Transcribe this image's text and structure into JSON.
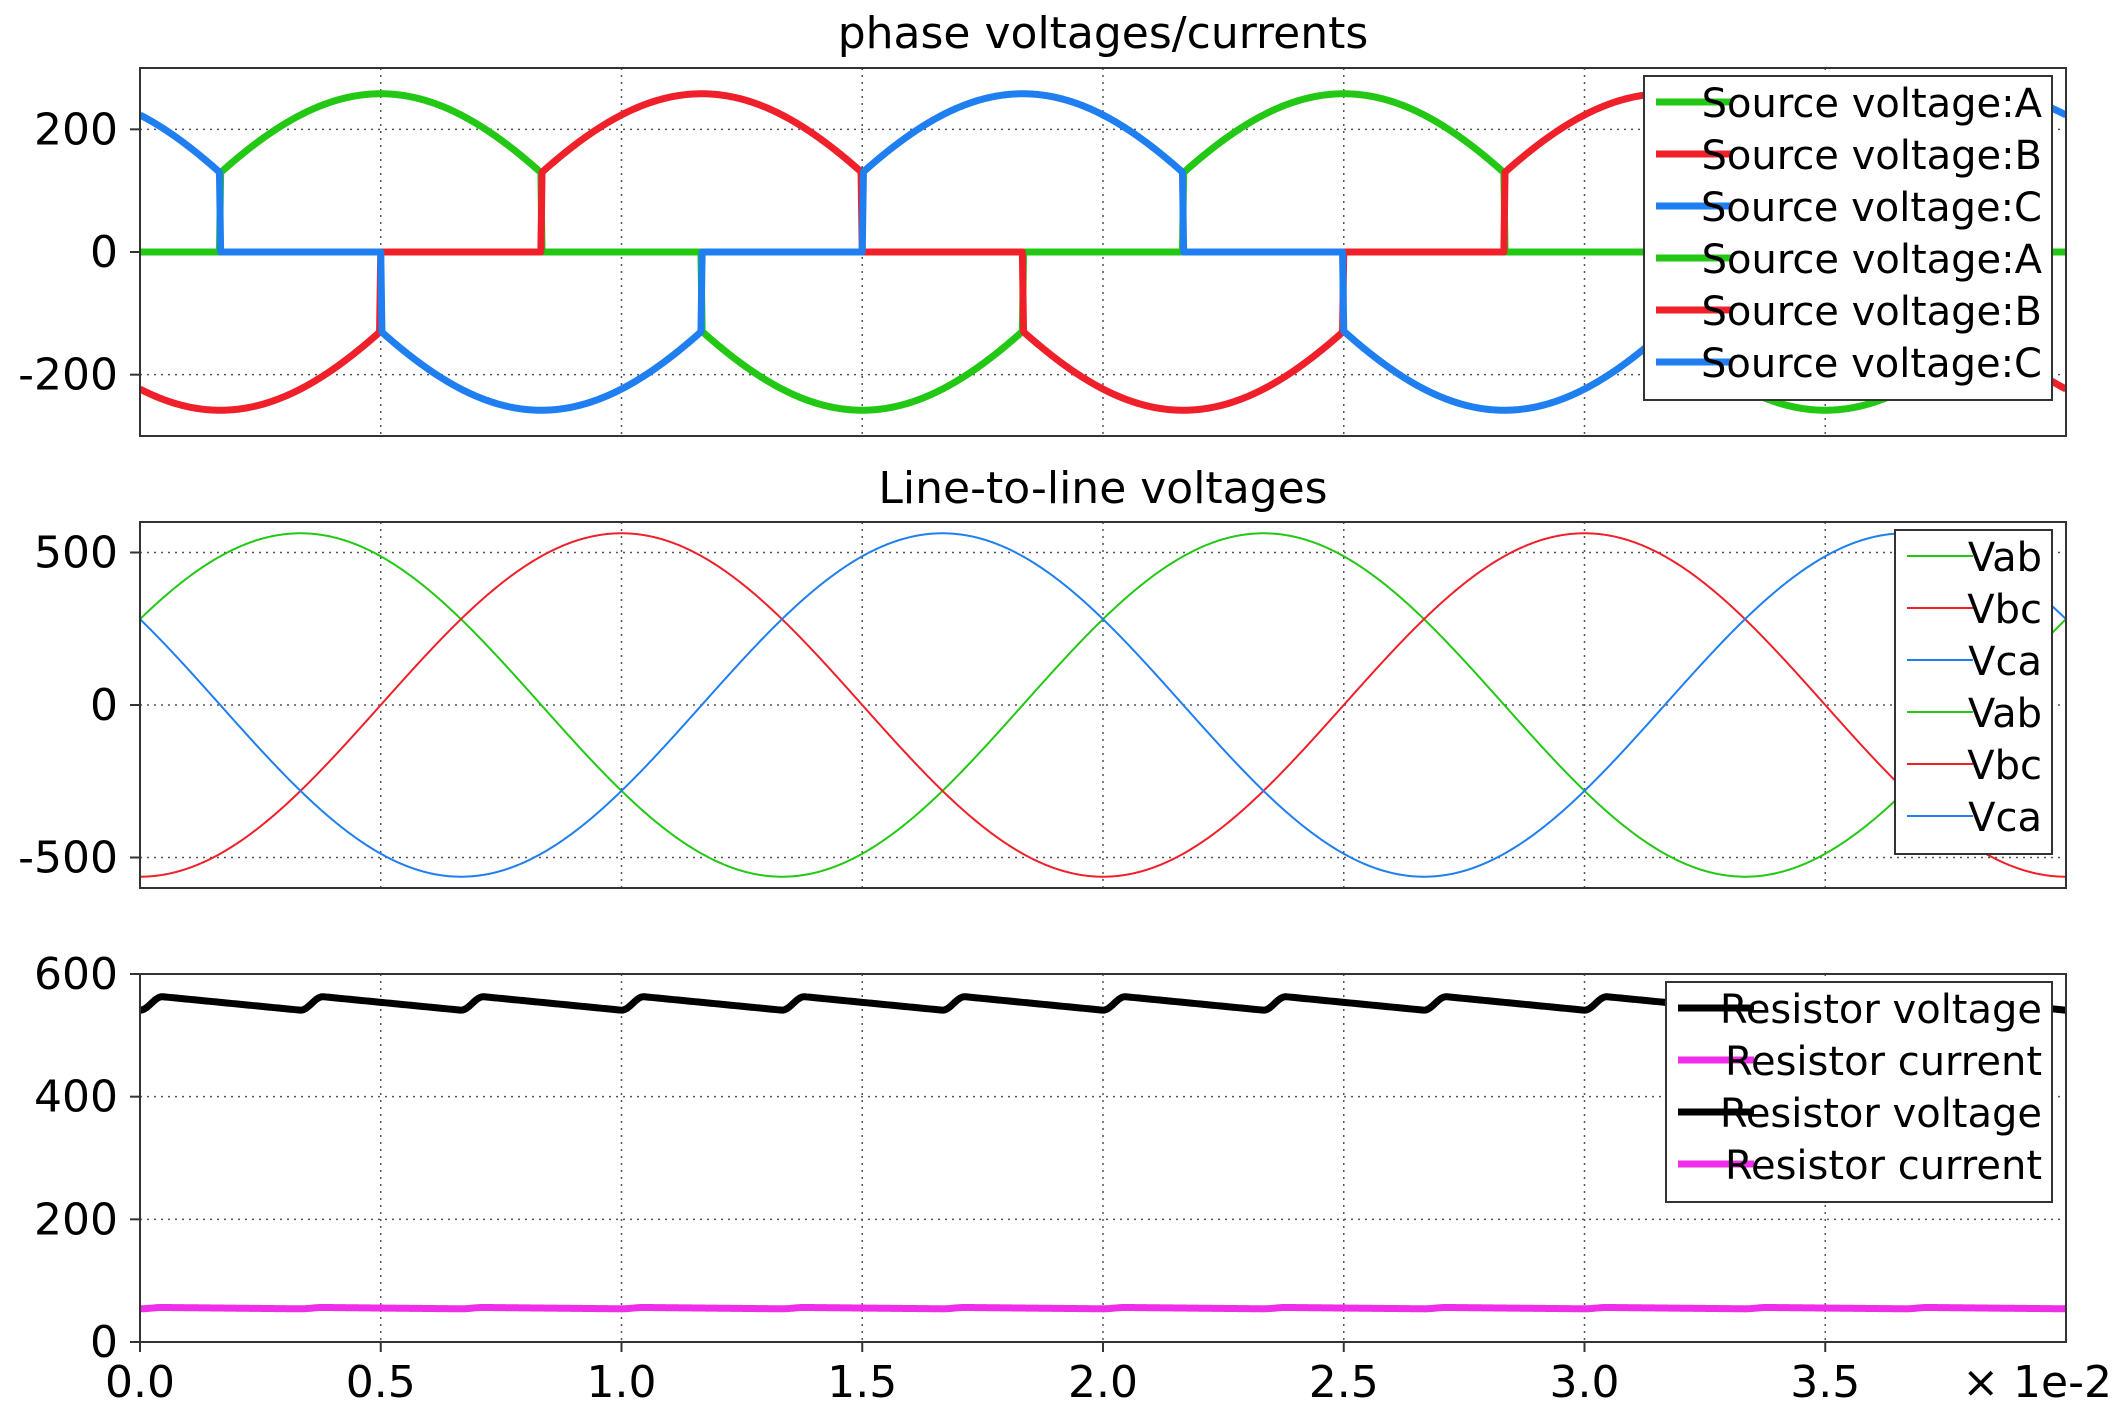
{
  "chart_data": [
    {
      "type": "line",
      "title": "phase voltages/currents",
      "xlim": [
        0,
        0.04
      ],
      "ylim": [
        -300,
        300
      ],
      "yticks": [
        -200,
        0,
        200
      ],
      "ytick_labels": [
        "-200",
        "0",
        "200"
      ],
      "grid": true,
      "legend_position": "top-right",
      "legend": [
        "Source voltage:A",
        "Source voltage:B",
        "Source voltage:C",
        "Source voltage:A",
        "Source voltage:B",
        "Source voltage:C"
      ],
      "series": [
        {
          "name": "Source voltage:A",
          "color": "#22c814",
          "amplitude": 258,
          "frequency_hz": 50,
          "phase_deg": 0,
          "conduction": "rectifier-diode-pulses"
        },
        {
          "name": "Source voltage:B",
          "color": "#f0202a",
          "amplitude": 258,
          "frequency_hz": 50,
          "phase_deg": -120,
          "conduction": "rectifier-diode-pulses"
        },
        {
          "name": "Source voltage:C",
          "color": "#1f7ff0",
          "amplitude": 258,
          "frequency_hz": 50,
          "phase_deg": 120,
          "conduction": "rectifier-diode-pulses"
        }
      ]
    },
    {
      "type": "line",
      "title": "Line-to-line voltages",
      "xlim": [
        0,
        0.04
      ],
      "ylim": [
        -600,
        600
      ],
      "yticks": [
        -500,
        0,
        500
      ],
      "ytick_labels": [
        "-500",
        "0",
        "500"
      ],
      "grid": true,
      "legend_position": "top-right",
      "legend": [
        "Vab",
        "Vbc",
        "Vca",
        "Vab",
        "Vbc",
        "Vca"
      ],
      "series": [
        {
          "name": "Vab",
          "color": "#22c814",
          "amplitude": 563,
          "frequency_hz": 50,
          "phase_deg": 30
        },
        {
          "name": "Vbc",
          "color": "#f0202a",
          "amplitude": 563,
          "frequency_hz": 50,
          "phase_deg": -90
        },
        {
          "name": "Vca",
          "color": "#1f7ff0",
          "amplitude": 563,
          "frequency_hz": 50,
          "phase_deg": 150
        }
      ]
    },
    {
      "type": "line",
      "title": "",
      "xlim": [
        0,
        0.04
      ],
      "ylim": [
        0,
        600
      ],
      "yticks": [
        0,
        200,
        400,
        600
      ],
      "ytick_labels": [
        "0",
        "200",
        "400",
        "600"
      ],
      "xticks": [
        0,
        0.005,
        0.01,
        0.015,
        0.02,
        0.025,
        0.03,
        0.035
      ],
      "xtick_labels": [
        "0.0",
        "0.5",
        "1.0",
        "1.5",
        "2.0",
        "2.5",
        "3.0",
        "3.5"
      ],
      "x_multiplier_label": "× 1e-2",
      "grid": true,
      "legend_position": "top-right",
      "legend": [
        "Resistor voltage",
        "Resistor current",
        "Resistor voltage",
        "Resistor current"
      ],
      "series": [
        {
          "name": "Resistor voltage",
          "color": "#000000",
          "max": 563,
          "min": 541,
          "period_s": 0.003333
        },
        {
          "name": "Resistor current",
          "color": "#ee2ee8",
          "max": 56.3,
          "min": 54.1,
          "period_s": 0.003333
        }
      ]
    }
  ]
}
